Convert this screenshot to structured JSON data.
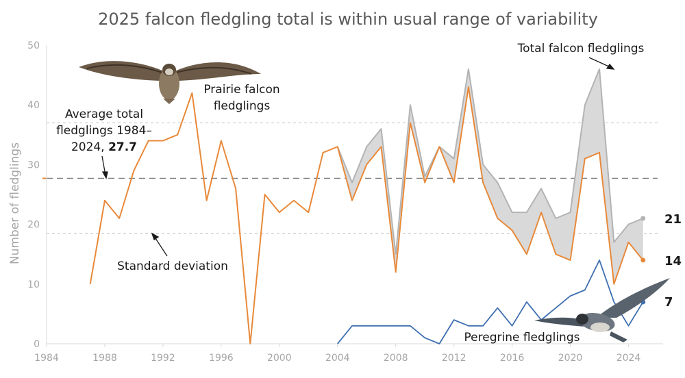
{
  "chart_data": {
    "type": "line",
    "title": "2025 falcon fledgling total is within usual range of variability",
    "xlabel": "",
    "ylabel": "Number of fledglings",
    "xlim": [
      1984,
      2026
    ],
    "ylim": [
      0,
      50
    ],
    "x_ticks": [
      "1984",
      "1988",
      "1992",
      "1996",
      "2000",
      "2004",
      "2008",
      "2012",
      "2016",
      "2020",
      "2024"
    ],
    "y_ticks": [
      "0",
      "10",
      "20",
      "30",
      "40",
      "50"
    ],
    "series": [
      {
        "name": "Prairie falcon fledglings",
        "color": "#e8893a",
        "x": [
          1987,
          1988,
          1989,
          1990,
          1991,
          1992,
          1993,
          1994,
          1995,
          1996,
          1997,
          1998,
          1999,
          2000,
          2001,
          2002,
          2003,
          2004,
          2005,
          2006,
          2007,
          2008,
          2009,
          2010,
          2011,
          2012,
          2013,
          2014,
          2015,
          2016,
          2017,
          2018,
          2019,
          2020,
          2021,
          2022,
          2023,
          2024,
          2025
        ],
        "values": [
          10,
          24,
          21,
          29,
          34,
          34,
          35,
          42,
          24,
          34,
          26,
          0,
          25,
          22,
          24,
          22,
          32,
          33,
          24,
          30,
          33,
          12,
          37,
          27,
          33,
          27,
          43,
          27,
          21,
          19,
          15,
          22,
          15,
          14,
          31,
          32,
          10,
          17,
          14
        ]
      },
      {
        "name": "Total falcon fledglings",
        "color": "#b3b3b3",
        "x": [
          2004,
          2005,
          2006,
          2007,
          2008,
          2009,
          2010,
          2011,
          2012,
          2013,
          2014,
          2015,
          2016,
          2017,
          2018,
          2019,
          2020,
          2021,
          2022,
          2023,
          2024,
          2025
        ],
        "values": [
          33,
          27,
          33,
          36,
          15,
          40,
          28,
          33,
          31,
          46,
          30,
          27,
          22,
          22,
          26,
          21,
          22,
          40,
          46,
          17,
          20,
          21
        ]
      },
      {
        "name": "Peregrine fledglings",
        "color": "#3e6fb0",
        "x": [
          2004,
          2005,
          2006,
          2007,
          2008,
          2009,
          2010,
          2011,
          2012,
          2013,
          2014,
          2015,
          2016,
          2017,
          2018,
          2019,
          2020,
          2021,
          2022,
          2023,
          2024,
          2025
        ],
        "values": [
          0,
          3,
          3,
          3,
          3,
          3,
          1,
          0,
          4,
          3,
          3,
          6,
          3,
          7,
          4,
          6,
          8,
          9,
          14,
          7,
          3,
          7
        ]
      }
    ],
    "reference_lines": [
      {
        "name": "Average total fledglings 1984–2024",
        "value": 27.7
      },
      {
        "name": "Standard deviation upper",
        "value": 37
      },
      {
        "name": "Standard deviation lower",
        "value": 18.5
      }
    ],
    "end_labels": {
      "total": "21",
      "prairie": "14",
      "peregrine": "7"
    },
    "annotations": {
      "total": "Total falcon fledglings",
      "prairie_line1": "Prairie falcon",
      "prairie_line2": "fledglings",
      "avg_line1": "Average total",
      "avg_line2": "fledglings 1984–",
      "avg_line3_prefix": "2024,",
      "avg_value": "27.7",
      "stdev": "Standard deviation",
      "peregrine": "Peregrine fledglings"
    }
  }
}
